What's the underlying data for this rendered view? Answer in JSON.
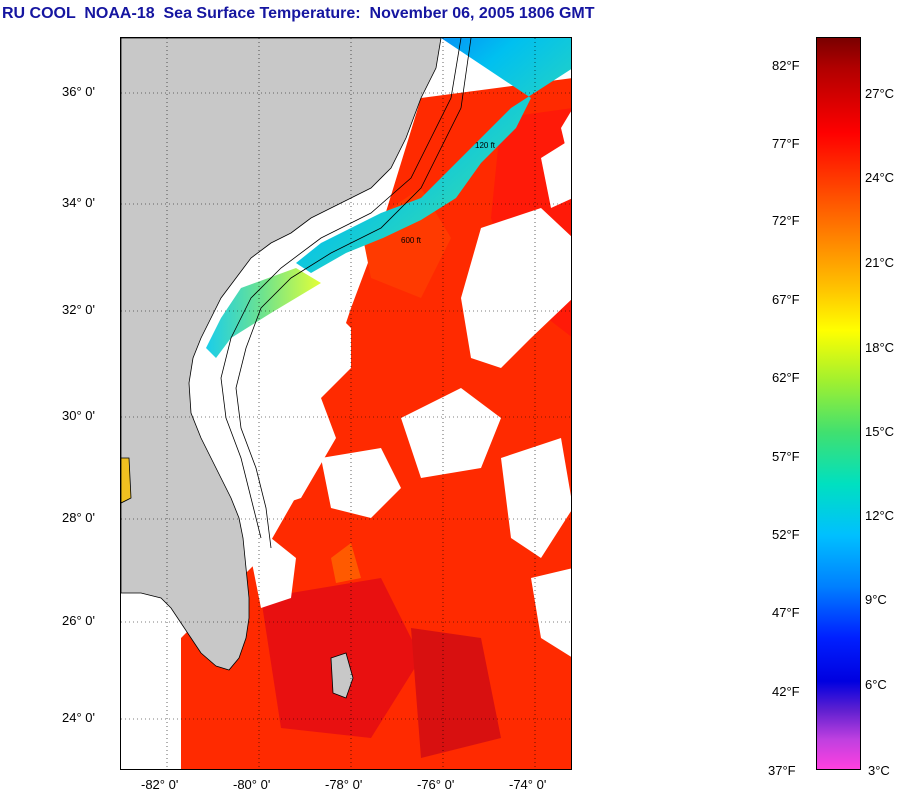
{
  "title": "RU COOL  NOAA-18  Sea Surface Temperature:  November 06, 2005 1806 GMT",
  "map": {
    "lat_labels": [
      "36° 0'",
      "34° 0'",
      "32° 0'",
      "30° 0'",
      "28° 0'",
      "26° 0'",
      "24° 0'"
    ],
    "lon_labels": [
      "-82° 0'",
      "-80° 0'",
      "-78° 0'",
      "-76° 0'",
      "-74° 0'"
    ],
    "contour_labels": [
      "120 ft",
      "600 ft"
    ],
    "colors": {
      "land": "#c8c8c8",
      "cloud": "#ffffff",
      "warm_sst": "#ff2000"
    }
  },
  "colorbar": {
    "fahrenheit": [
      "82°F",
      "77°F",
      "72°F",
      "67°F",
      "62°F",
      "57°F",
      "52°F",
      "47°F",
      "42°F",
      "37°F"
    ],
    "celsius": [
      "27°C",
      "24°C",
      "21°C",
      "18°C",
      "15°C",
      "12°C",
      "9°C",
      "6°C",
      "3°C"
    ]
  }
}
